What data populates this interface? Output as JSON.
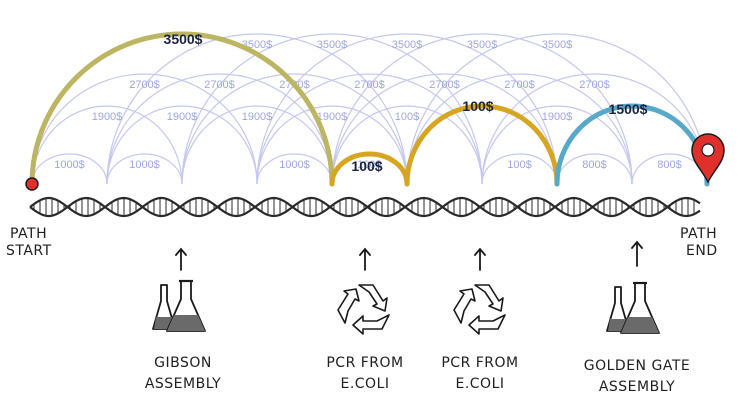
{
  "colors": {
    "background_arc": "#c4c8ee",
    "cost_3500_arc": "#bcb562",
    "cost_100_arc": "#d6a623",
    "cost_1500_arc": "#58a8c9",
    "start_marker": "#e0302c",
    "end_pin": "#e0302c",
    "dna": "#2a2a2a"
  },
  "icons": [
    "flask-icon",
    "recycle-icon",
    "arrow-up-icon",
    "map-pin-icon",
    "dna-helix-icon"
  ],
  "nodes": [
    {
      "label": [
        "PATH",
        "START"
      ]
    },
    {
      "label": []
    },
    {
      "label": []
    },
    {
      "label": []
    },
    {
      "label": []
    },
    {
      "label": []
    },
    {
      "label": []
    },
    {
      "label": []
    },
    {
      "label": []
    },
    {
      "label": [
        "PATH",
        "END"
      ]
    }
  ],
  "background_edges": [
    {
      "from": 0,
      "to": 1,
      "label": "1000$"
    },
    {
      "from": 1,
      "to": 2,
      "label": "1000$"
    },
    {
      "from": 3,
      "to": 4,
      "label": "1000$"
    },
    {
      "from": 4,
      "to": 5,
      "label": "100$"
    },
    {
      "from": 6,
      "to": 7,
      "label": "100$"
    },
    {
      "from": 7,
      "to": 8,
      "label": "800$"
    },
    {
      "from": 8,
      "to": 9,
      "label": "800$"
    },
    {
      "from": 0,
      "to": 2,
      "label": "1900$"
    },
    {
      "from": 1,
      "to": 3,
      "label": "1900$"
    },
    {
      "from": 2,
      "to": 4,
      "label": "1900$"
    },
    {
      "from": 3,
      "to": 5,
      "label": "1900$"
    },
    {
      "from": 4,
      "to": 6,
      "label": "100$"
    },
    {
      "from": 6,
      "to": 8,
      "label": "1900$"
    },
    {
      "from": 0,
      "to": 3,
      "label": "2700$"
    },
    {
      "from": 1,
      "to": 4,
      "label": "2700$"
    },
    {
      "from": 2,
      "to": 5,
      "label": "2700$"
    },
    {
      "from": 3,
      "to": 6,
      "label": "2700$"
    },
    {
      "from": 4,
      "to": 7,
      "label": "2700$"
    },
    {
      "from": 5,
      "to": 8,
      "label": "2700$"
    },
    {
      "from": 6,
      "to": 9,
      "label": "2700$"
    },
    {
      "from": 1,
      "to": 5,
      "label": "3500$"
    },
    {
      "from": 2,
      "to": 6,
      "label": "3500$"
    },
    {
      "from": 3,
      "to": 7,
      "label": "3500$"
    },
    {
      "from": 4,
      "to": 8,
      "label": "3500$"
    },
    {
      "from": 5,
      "to": 9,
      "label": "3500$"
    }
  ],
  "path_edges": [
    {
      "from": 0,
      "to": 4,
      "label": "3500$",
      "color_key": "cost_3500_arc"
    },
    {
      "from": 4,
      "to": 5,
      "label": "100$",
      "color_key": "cost_100_arc"
    },
    {
      "from": 5,
      "to": 7,
      "label": "100$",
      "color_key": "cost_100_arc"
    },
    {
      "from": 7,
      "to": 9,
      "label": "1500$",
      "color_key": "cost_1500_arc"
    }
  ],
  "methods": [
    {
      "icon": "flask-icon",
      "lines": [
        "GIBSON",
        "ASSEMBLY"
      ]
    },
    {
      "icon": "recycle-icon",
      "lines": [
        "PCR FROM",
        "E.COLI"
      ]
    },
    {
      "icon": "recycle-icon",
      "lines": [
        "PCR FROM",
        "E.COLI"
      ]
    },
    {
      "icon": "flask-icon",
      "lines": [
        "GOLDEN GATE",
        "ASSEMBLY"
      ]
    }
  ]
}
